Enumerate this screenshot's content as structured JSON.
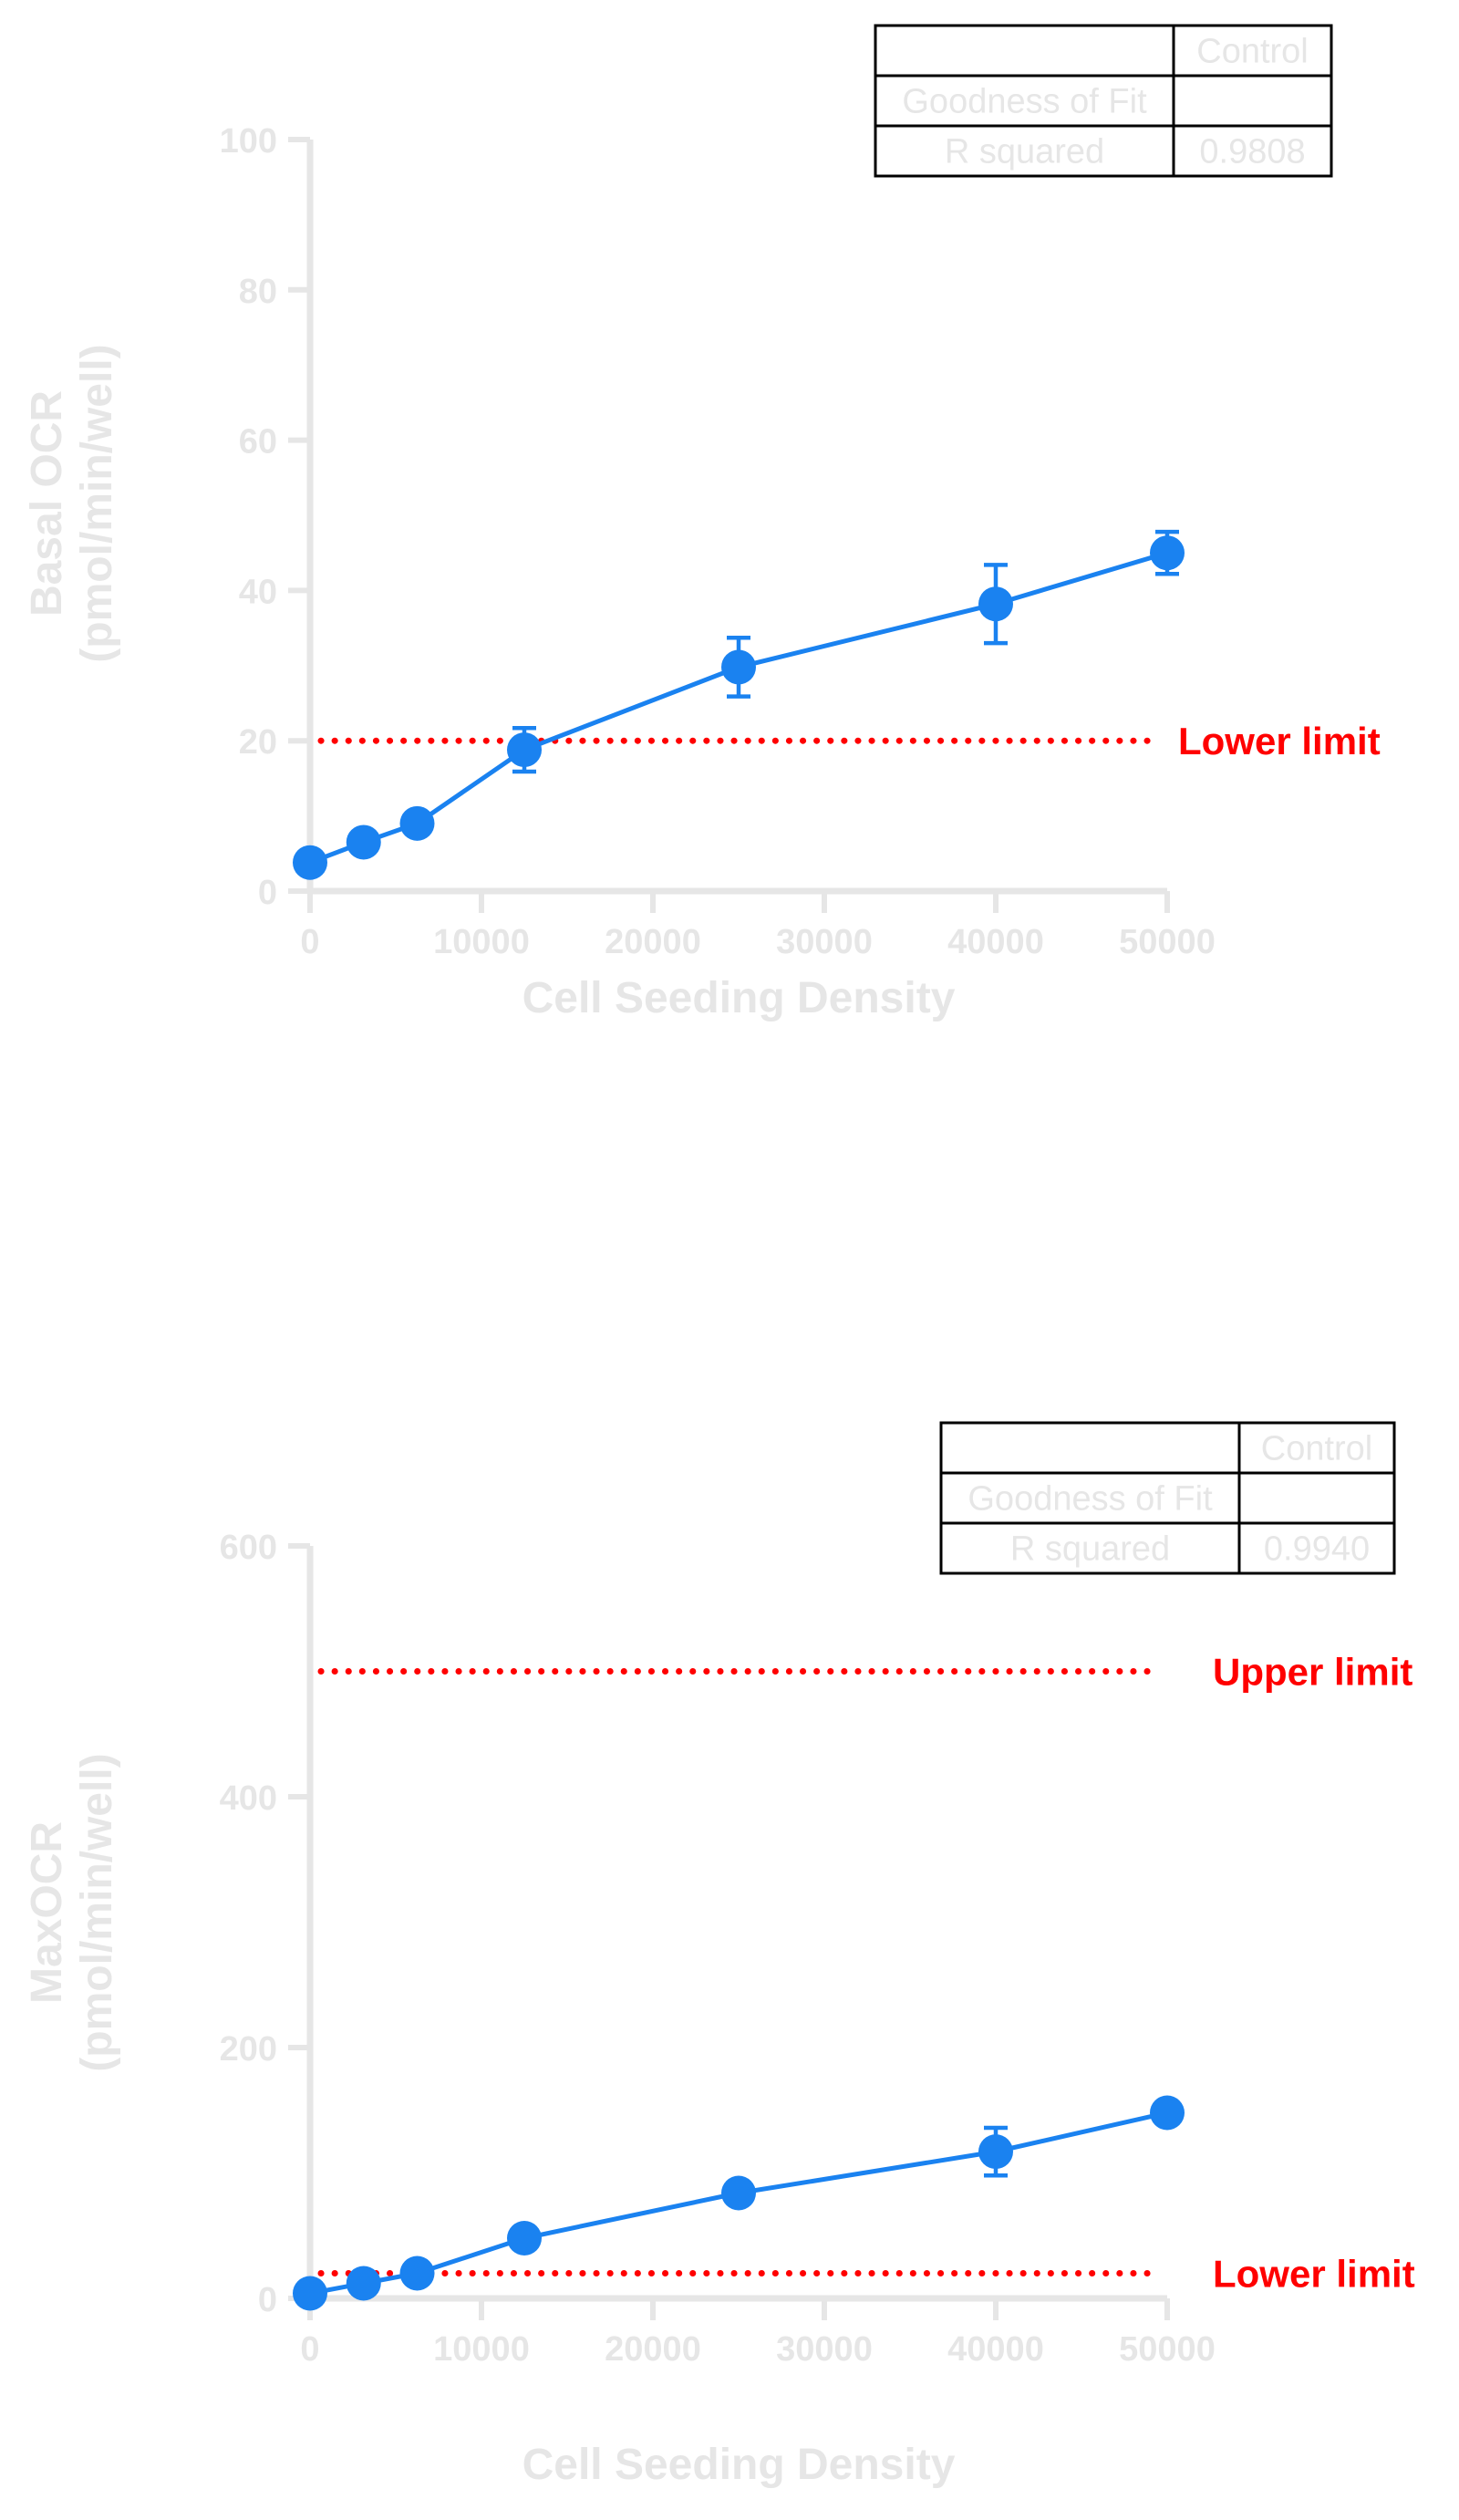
{
  "colors": {
    "series": "#1a82f0",
    "reference": "#ff0000",
    "axis": "#e6e6e6",
    "table_border": "#000000"
  },
  "chart_data": [
    {
      "type": "line",
      "title": "",
      "xlabel": "Cell Seeding Density",
      "ylabel": [
        "Basal OCR",
        "(pmol/min/well)"
      ],
      "xlim": [
        0,
        50000
      ],
      "ylim": [
        0,
        100
      ],
      "xticks": [
        0,
        10000,
        20000,
        30000,
        40000,
        50000
      ],
      "yticks": [
        0,
        20,
        40,
        60,
        80,
        100
      ],
      "grid": false,
      "series": [
        {
          "x": [
            0,
            3125,
            6250,
            12500,
            25000,
            40000,
            50000
          ],
          "y": [
            3.8,
            6.5,
            9.0,
            18.8,
            29.8,
            38.2,
            45.0
          ],
          "err": [
            0,
            0,
            0,
            2.9,
            3.9,
            5.2,
            2.8
          ]
        }
      ],
      "reference_lines": [
        {
          "label": "Lower limit",
          "y": 20
        }
      ],
      "table": {
        "header": [
          "",
          "Control"
        ],
        "rows": [
          [
            "Goodness of Fit",
            ""
          ],
          [
            "R squared",
            "0.9808"
          ]
        ]
      }
    },
    {
      "type": "line",
      "title": "",
      "xlabel": "Cell Seeding Density",
      "ylabel": [
        "MaxOCR",
        "(pmol/min/well)"
      ],
      "xlim": [
        0,
        50000
      ],
      "ylim": [
        0,
        600
      ],
      "xticks": [
        0,
        10000,
        20000,
        30000,
        40000,
        50000
      ],
      "yticks": [
        0,
        200,
        400,
        600
      ],
      "grid": false,
      "series": [
        {
          "x": [
            0,
            3125,
            6250,
            12500,
            25000,
            40000,
            50000
          ],
          "y": [
            4,
            12,
            20,
            48,
            84,
            117,
            148
          ],
          "err": [
            0,
            0,
            0,
            0,
            0,
            19,
            0
          ]
        }
      ],
      "reference_lines": [
        {
          "label": "Upper limit",
          "y": 500
        },
        {
          "label": "Lower limit",
          "y": 20
        }
      ],
      "table": {
        "header": [
          "",
          "Control"
        ],
        "rows": [
          [
            "Goodness of Fit",
            ""
          ],
          [
            "R squared",
            "0.9940"
          ]
        ]
      }
    }
  ]
}
